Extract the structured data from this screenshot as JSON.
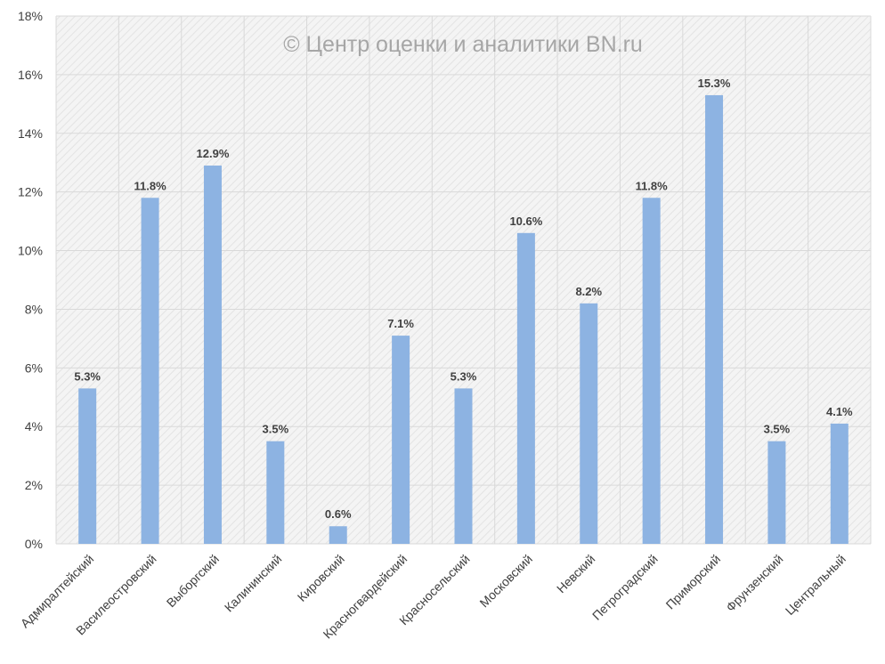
{
  "watermark": "© Центр оценки и аналитики BN.ru",
  "chart_data": {
    "type": "bar",
    "categories": [
      "Адмиралтейский",
      "Василеостровский",
      "Выборгский",
      "Калининский",
      "Кировский",
      "Красногвардейский",
      "Красносельский",
      "Московский",
      "Невский",
      "Петроградский",
      "Приморский",
      "Фрунзенский",
      "Центральный"
    ],
    "values": [
      5.3,
      11.8,
      12.9,
      3.5,
      0.6,
      7.1,
      5.3,
      10.6,
      8.2,
      11.8,
      15.3,
      3.5,
      4.1
    ],
    "value_labels": [
      "5.3%",
      "11.8%",
      "12.9%",
      "3.5%",
      "0.6%",
      "7.1%",
      "5.3%",
      "10.6%",
      "8.2%",
      "11.8%",
      "15.3%",
      "3.5%",
      "4.1%"
    ],
    "y_ticks": [
      "0%",
      "2%",
      "4%",
      "6%",
      "8%",
      "10%",
      "12%",
      "14%",
      "16%",
      "18%"
    ],
    "ylim": [
      0,
      18
    ],
    "grid": true,
    "bar_color": "#8db3e2"
  }
}
